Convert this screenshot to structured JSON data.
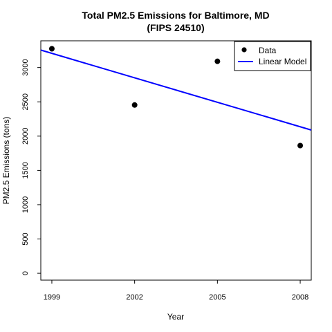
{
  "chart_data": {
    "type": "scatter",
    "title": "Total PM2.5 Emissions for Baltimore, MD",
    "subtitle": "(FIPS 24510)",
    "xlabel": "Year",
    "ylabel": "PM2.5 Emissions (tons)",
    "x": [
      1999,
      2002,
      2005,
      2008
    ],
    "x_ticks": [
      "1999",
      "2002",
      "2005",
      "2008"
    ],
    "y_ticks": [
      "0",
      "500",
      "1000",
      "1500",
      "2000",
      "2500",
      "3000"
    ],
    "ylim": [
      -100,
      3390
    ],
    "xlim": [
      1998.6,
      2008.4
    ],
    "grid": false,
    "legend_position": "top-right",
    "series": [
      {
        "name": "Data",
        "kind": "points",
        "color": "#000000",
        "values": [
          3274,
          2454,
          3091,
          1862
        ]
      },
      {
        "name": "Linear Model",
        "kind": "line",
        "color": "#0000ff",
        "intercept_at_xlim_start": 3255,
        "slope_per_year": -119.0
      }
    ]
  }
}
